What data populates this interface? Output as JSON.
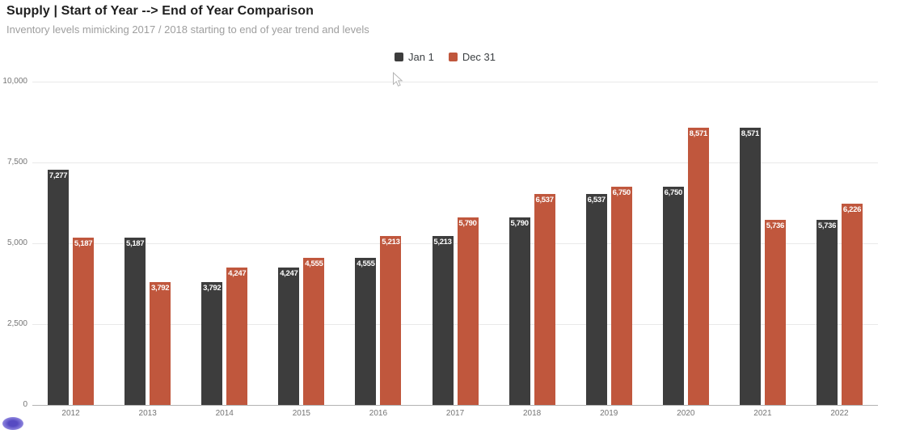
{
  "header": {
    "title": "Supply | Start of Year --> End of Year Comparison",
    "subtitle": "Inventory levels mimicking 2017 / 2018 starting to end of year trend and levels"
  },
  "chart_data": {
    "type": "bar",
    "title": "Supply | Start of Year --> End of Year Comparison",
    "subtitle": "Inventory levels mimicking 2017 / 2018 starting to end of year trend and levels",
    "categories": [
      "2012",
      "2013",
      "2014",
      "2015",
      "2016",
      "2017",
      "2018",
      "2019",
      "2020",
      "2021",
      "2022"
    ],
    "series": [
      {
        "name": "Jan 1",
        "color": "#3d3d3d",
        "values": [
          7277,
          5187,
          3792,
          4247,
          4555,
          5213,
          5790,
          6537,
          6750,
          8571,
          5736
        ],
        "value_labels": [
          "7,277",
          "5,187",
          "3,792",
          "4,247",
          "4,555",
          "5,213",
          "5,790",
          "6,537",
          "6,750",
          "8,571",
          "5,736"
        ]
      },
      {
        "name": "Dec 31",
        "color": "#c0573d",
        "values": [
          5187,
          3792,
          4247,
          4555,
          5213,
          5790,
          6537,
          6750,
          8571,
          5736,
          6226
        ],
        "value_labels": [
          "5,187",
          "3,792",
          "4,247",
          "4,555",
          "5,213",
          "5,790",
          "6,537",
          "6,750",
          "8,571",
          "5,736",
          "6,226"
        ]
      }
    ],
    "xlabel": "",
    "ylabel": "",
    "ylim": [
      0,
      10000
    ],
    "yticks": [
      {
        "value": 0,
        "label": "0"
      },
      {
        "value": 2500,
        "label": "2,500"
      },
      {
        "value": 5000,
        "label": "5,000"
      },
      {
        "value": 7500,
        "label": "7,500"
      },
      {
        "value": 10000,
        "label": "10,000"
      }
    ],
    "grid": true,
    "legend_position": "top-center",
    "bar_label_position": "inside-top",
    "bar_label_color": "#ffffff"
  },
  "overlay": {
    "cursor": "mouse-pointer",
    "bubble_color": "#6a5ed1"
  }
}
